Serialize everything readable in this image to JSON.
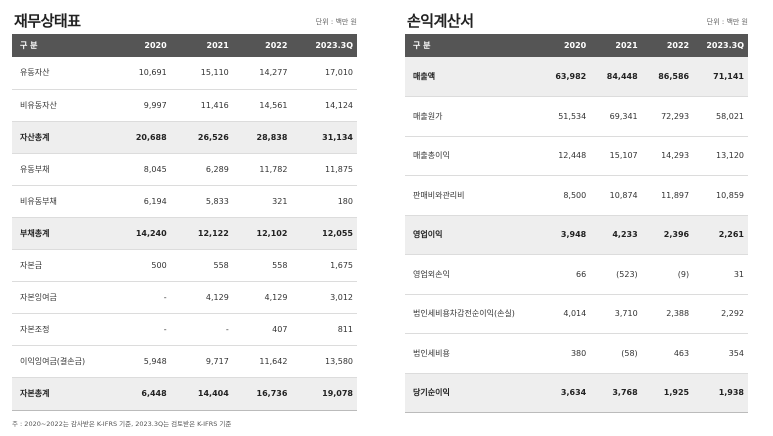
{
  "balance_sheet": {
    "title": "재무상태표",
    "unit": "단위 : 백만 원",
    "headers": [
      "구 분",
      "2020",
      "2021",
      "2022",
      "2023.3Q"
    ],
    "rows": [
      {
        "label": "유동자산",
        "values": [
          "10,691",
          "15,110",
          "14,277",
          "17,010"
        ],
        "total": false
      },
      {
        "label": "비유동자산",
        "values": [
          "9,997",
          "11,416",
          "14,561",
          "14,124"
        ],
        "total": false
      },
      {
        "label": "자산총계",
        "values": [
          "20,688",
          "26,526",
          "28,838",
          "31,134"
        ],
        "total": true
      },
      {
        "label": "유동부채",
        "values": [
          "8,045",
          "6,289",
          "11,782",
          "11,875"
        ],
        "total": false
      },
      {
        "label": "비유동부채",
        "values": [
          "6,194",
          "5,833",
          "321",
          "180"
        ],
        "total": false
      },
      {
        "label": "부채총계",
        "values": [
          "14,240",
          "12,122",
          "12,102",
          "12,055"
        ],
        "total": true
      },
      {
        "label": "자본금",
        "values": [
          "500",
          "558",
          "558",
          "1,675"
        ],
        "total": false
      },
      {
        "label": "자본잉여금",
        "values": [
          "-",
          "4,129",
          "4,129",
          "3,012"
        ],
        "total": false
      },
      {
        "label": "자본조정",
        "values": [
          "-",
          "-",
          "407",
          "811"
        ],
        "total": false
      },
      {
        "label": "이익잉여금(결손금)",
        "values": [
          "5,948",
          "9,717",
          "11,642",
          "13,580"
        ],
        "total": false
      },
      {
        "label": "자본총계",
        "values": [
          "6,448",
          "14,404",
          "16,736",
          "19,078"
        ],
        "total": true
      }
    ]
  },
  "income_statement": {
    "title": "손익계산서",
    "unit": "단위 : 백만 원",
    "headers": [
      "구 분",
      "2020",
      "2021",
      "2022",
      "2023.3Q"
    ],
    "rows": [
      {
        "label": "매출액",
        "values": [
          "63,982",
          "84,448",
          "86,586",
          "71,141"
        ],
        "total": true
      },
      {
        "label": "매출원가",
        "values": [
          "51,534",
          "69,341",
          "72,293",
          "58,021"
        ],
        "total": false
      },
      {
        "label": "매출총이익",
        "values": [
          "12,448",
          "15,107",
          "14,293",
          "13,120"
        ],
        "total": false
      },
      {
        "label": "판매비와관리비",
        "values": [
          "8,500",
          "10,874",
          "11,897",
          "10,859"
        ],
        "total": false
      },
      {
        "label": "영업이익",
        "values": [
          "3,948",
          "4,233",
          "2,396",
          "2,261"
        ],
        "total": true
      },
      {
        "label": "영업외손익",
        "values": [
          "66",
          "(523)",
          "(9)",
          "31"
        ],
        "total": false
      },
      {
        "label": "법인세비용차감전순이익(손실)",
        "values": [
          "4,014",
          "3,710",
          "2,388",
          "2,292"
        ],
        "total": false
      },
      {
        "label": "법인세비용",
        "values": [
          "380",
          "(58)",
          "463",
          "354"
        ],
        "total": false
      },
      {
        "label": "당기순이익",
        "values": [
          "3,634",
          "3,768",
          "1,925",
          "1,938"
        ],
        "total": true
      }
    ]
  },
  "footnote": "주 : 2020~2022는 감사받은 K-IFRS 기준, 2023.3Q는 검토받은 K-IFRS 기준"
}
